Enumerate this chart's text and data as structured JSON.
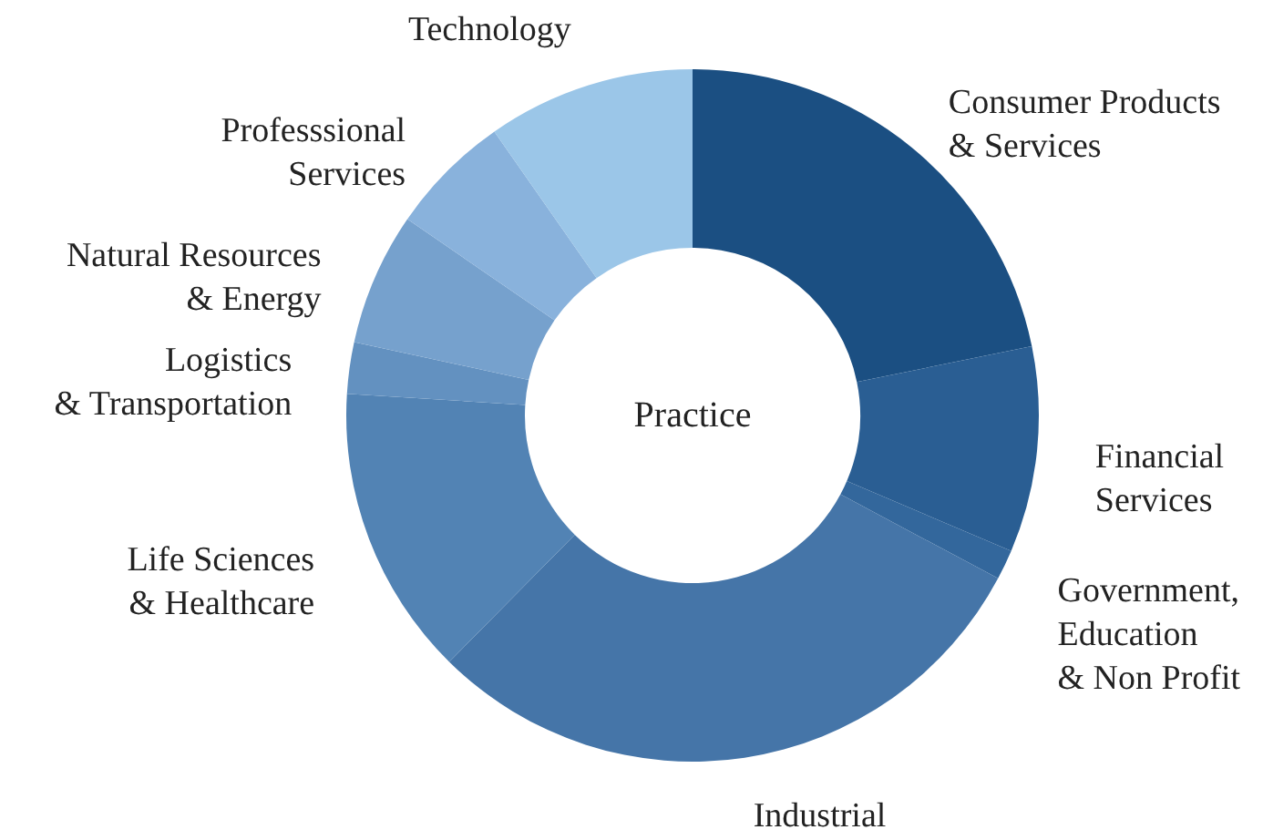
{
  "chart_data": {
    "type": "donut",
    "title": "Practice",
    "categories": [
      "Consumer Products & Services",
      "Financial Services",
      "Government, Education & Non Profit",
      "Industrial",
      "Life Sciences & Healthcare",
      "Logistics & Transportation",
      "Natural Resources & Energy",
      "Professsional Services",
      "Technology"
    ],
    "values": [
      21.8,
      9.6,
      1.4,
      29.6,
      13.6,
      2.4,
      6.2,
      5.7,
      9.7
    ],
    "colors": [
      "#1b4f82",
      "#2a5e93",
      "#33679c",
      "#4575a8",
      "#5283b4",
      "#6391c0",
      "#76a1cd",
      "#89b2dc",
      "#9bc6e8"
    ]
  }
}
